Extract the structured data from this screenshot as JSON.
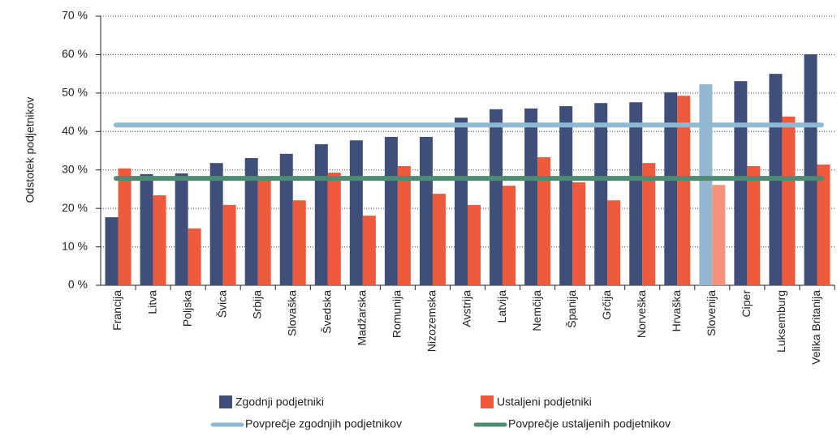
{
  "chart_data": {
    "type": "bar",
    "y_label": "Odstotek podjetnikov",
    "categories": [
      "Francija",
      "Litva",
      "Poljska",
      "Švica",
      "Srbija",
      "Slovaška",
      "Švedska",
      "Madžarska",
      "Romunija",
      "Nizozemska",
      "Avstrija",
      "Latvija",
      "Nemčija",
      "Španija",
      "Grčija",
      "Norveška",
      "Hrvaška",
      "Slovenija",
      "Ciper",
      "Luksemburg",
      "Velika Britanija"
    ],
    "series": [
      {
        "name": "Zgodnji podjetniki",
        "color": "#3f4f7a",
        "highlight_color": "#95b8d1",
        "values": [
          17.7,
          28.9,
          29.1,
          31.8,
          33.1,
          34.2,
          36.7,
          37.7,
          38.6,
          38.6,
          43.6,
          45.8,
          46.0,
          46.6,
          47.4,
          47.6,
          50.2,
          52.3,
          53.1,
          55.0,
          60.1
        ]
      },
      {
        "name": "Ustaljeni podjetniki",
        "color": "#f05a3c",
        "highlight_color": "#f4937a",
        "values": [
          30.4,
          23.4,
          14.8,
          20.9,
          27.4,
          22.1,
          29.3,
          18.1,
          31.0,
          23.8,
          20.9,
          25.9,
          33.3,
          26.8,
          22.1,
          31.8,
          49.3,
          26.1,
          31.0,
          43.9,
          31.4
        ]
      }
    ],
    "highlight_index": 17,
    "reference_lines": [
      {
        "name": "Povprečje zgodnjih podjetnikov",
        "color": "#8fb8d2",
        "value": 41.7
      },
      {
        "name": "Povprečje ustaljenih podjetnikov",
        "color": "#4f8a72",
        "value": 27.8
      }
    ],
    "ylim": [
      0,
      70
    ],
    "yticks": [
      {
        "value": 0,
        "label": "0 %"
      },
      {
        "value": 10,
        "label": "10 %"
      },
      {
        "value": 20,
        "label": "20 %"
      },
      {
        "value": 30,
        "label": "30 %"
      },
      {
        "value": 40,
        "label": "40 %"
      },
      {
        "value": 50,
        "label": "50 %"
      },
      {
        "value": 60,
        "label": "60 %"
      },
      {
        "value": 70,
        "label": "70 %"
      }
    ],
    "grid": true
  }
}
